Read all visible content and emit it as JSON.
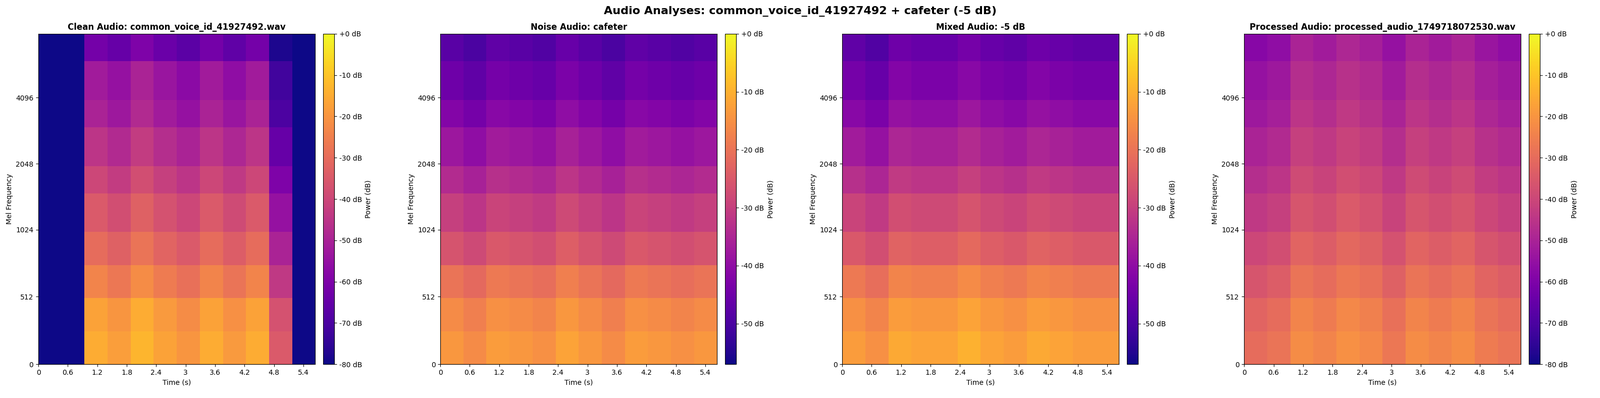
{
  "title": "Audio Analyses: common_voice_id_41927492 + cafeter (-5 dB)",
  "chart_data": [
    {
      "type": "heatmap",
      "title": "Clean Audio: common_voice_id_41927492.wav",
      "x_label": "Time (s)",
      "y_label": "Mel Frequency",
      "color": "plasma",
      "x_edges": [
        0,
        0.47,
        0.94,
        1.41,
        1.88,
        2.35,
        2.82,
        3.29,
        3.76,
        4.23,
        4.7,
        5.17,
        5.64
      ],
      "y_edges": [
        0,
        250,
        500,
        750,
        1000,
        1500,
        2000,
        3000,
        4000,
        6000,
        8000
      ],
      "cells": [
        [
          -80,
          -80,
          -15,
          -18,
          -13,
          -17,
          -20,
          -15,
          -19,
          -15,
          -35,
          -80
        ],
        [
          -80,
          -80,
          -17,
          -20,
          -15,
          -19,
          -22,
          -17,
          -21,
          -17,
          -37,
          -80
        ],
        [
          -80,
          -80,
          -24,
          -27,
          -22,
          -26,
          -29,
          -24,
          -28,
          -24,
          -44,
          -80
        ],
        [
          -80,
          -80,
          -30,
          -33,
          -28,
          -32,
          -35,
          -30,
          -34,
          -30,
          -50,
          -80
        ],
        [
          -80,
          -80,
          -35,
          -38,
          -33,
          -37,
          -40,
          -35,
          -39,
          -35,
          -55,
          -80
        ],
        [
          -80,
          -80,
          -40,
          -43,
          -38,
          -42,
          -45,
          -40,
          -44,
          -40,
          -60,
          -80
        ],
        [
          -80,
          -80,
          -45,
          -48,
          -43,
          -47,
          -50,
          -45,
          -49,
          -45,
          -65,
          -80
        ],
        [
          -80,
          -80,
          -50,
          -53,
          -48,
          -52,
          -55,
          -50,
          -54,
          -50,
          -70,
          -80
        ],
        [
          -80,
          -80,
          -52,
          -55,
          -50,
          -54,
          -57,
          -52,
          -56,
          -52,
          -72,
          -80
        ],
        [
          -80,
          -80,
          -62,
          -65,
          -60,
          -64,
          -67,
          -62,
          -66,
          -62,
          -78,
          -80
        ]
      ],
      "xlim": [
        0,
        5.64
      ],
      "xticks": [
        0,
        0.6,
        1.2,
        1.8,
        2.4,
        3,
        3.6,
        4.2,
        4.8,
        5.4
      ],
      "ylim": [
        0,
        8000
      ],
      "yticks": [
        0,
        512,
        1024,
        2048,
        4096
      ],
      "colorbar": {
        "label": "Power (dB)",
        "range": [
          -80,
          0
        ],
        "ticks": [
          {
            "value": 0,
            "label": "+0 dB"
          },
          {
            "value": -10,
            "label": "-10 dB"
          },
          {
            "value": -20,
            "label": "-20 dB"
          },
          {
            "value": -30,
            "label": "-30 dB"
          },
          {
            "value": -40,
            "label": "-40 dB"
          },
          {
            "value": -50,
            "label": "-50 dB"
          },
          {
            "value": -60,
            "label": "-60 dB"
          },
          {
            "value": -70,
            "label": "-70 dB"
          },
          {
            "value": -80,
            "label": "-80 dB"
          }
        ]
      }
    },
    {
      "type": "heatmap",
      "title": "Noise Audio: cafeter",
      "x_label": "Time (s)",
      "y_label": "Mel Frequency",
      "color": "plasma",
      "x_edges": [
        0,
        0.47,
        0.94,
        1.41,
        1.88,
        2.35,
        2.82,
        3.29,
        3.76,
        4.23,
        4.7,
        5.17,
        5.64
      ],
      "y_edges": [
        0,
        250,
        500,
        750,
        1000,
        1500,
        2000,
        3000,
        4000,
        6000,
        8000
      ],
      "cells": [
        [
          -14,
          -16,
          -13,
          -14,
          -15,
          -12,
          -14,
          -16,
          -13,
          -14,
          -15,
          -14
        ],
        [
          -16,
          -18,
          -15,
          -16,
          -17,
          -14,
          -16,
          -18,
          -15,
          -16,
          -17,
          -16
        ],
        [
          -20,
          -22,
          -19,
          -20,
          -21,
          -18,
          -20,
          -22,
          -19,
          -20,
          -21,
          -20
        ],
        [
          -26,
          -28,
          -25,
          -26,
          -27,
          -24,
          -26,
          -28,
          -25,
          -26,
          -27,
          -26
        ],
        [
          -30,
          -32,
          -29,
          -30,
          -31,
          -28,
          -30,
          -32,
          -29,
          -30,
          -31,
          -30
        ],
        [
          -34,
          -36,
          -33,
          -34,
          -35,
          -32,
          -34,
          -36,
          -33,
          -34,
          -35,
          -34
        ],
        [
          -38,
          -40,
          -37,
          -38,
          -39,
          -36,
          -38,
          -40,
          -37,
          -38,
          -39,
          -38
        ],
        [
          -42,
          -44,
          -41,
          -42,
          -43,
          -40,
          -42,
          -44,
          -41,
          -42,
          -43,
          -42
        ],
        [
          -45,
          -47,
          -44,
          -45,
          -46,
          -43,
          -45,
          -47,
          -44,
          -45,
          -46,
          -45
        ],
        [
          -48,
          -50,
          -47,
          -48,
          -49,
          -46,
          -48,
          -50,
          -47,
          -48,
          -49,
          -48
        ]
      ],
      "xlim": [
        0,
        5.64
      ],
      "xticks": [
        0,
        0.6,
        1.2,
        1.8,
        2.4,
        3,
        3.6,
        4.2,
        4.8,
        5.4
      ],
      "ylim": [
        0,
        8000
      ],
      "yticks": [
        0,
        512,
        1024,
        2048,
        4096
      ],
      "colorbar": {
        "label": "Power (dB)",
        "range": [
          -57,
          0
        ],
        "ticks": [
          {
            "value": 0,
            "label": "+0 dB"
          },
          {
            "value": -10,
            "label": "-10 dB"
          },
          {
            "value": -20,
            "label": "-20 dB"
          },
          {
            "value": -30,
            "label": "-30 dB"
          },
          {
            "value": -40,
            "label": "-40 dB"
          },
          {
            "value": -50,
            "label": "-50 dB"
          }
        ]
      }
    },
    {
      "type": "heatmap",
      "title": "Mixed Audio: -5 dB",
      "x_label": "Time (s)",
      "y_label": "Mel Frequency",
      "color": "plasma",
      "x_edges": [
        0,
        0.47,
        0.94,
        1.41,
        1.88,
        2.35,
        2.82,
        3.29,
        3.76,
        4.23,
        4.7,
        5.17,
        5.64
      ],
      "y_edges": [
        0,
        250,
        500,
        750,
        1000,
        1500,
        2000,
        3000,
        4000,
        6000,
        8000
      ],
      "cells": [
        [
          -13,
          -15,
          -11,
          -12,
          -12,
          -10,
          -12,
          -13,
          -11,
          -12,
          -13,
          -13
        ],
        [
          -15,
          -17,
          -13,
          -14,
          -14,
          -12,
          -14,
          -15,
          -13,
          -14,
          -15,
          -15
        ],
        [
          -19,
          -21,
          -17,
          -18,
          -18,
          -16,
          -18,
          -19,
          -17,
          -18,
          -19,
          -19
        ],
        [
          -25,
          -27,
          -23,
          -24,
          -24,
          -22,
          -24,
          -25,
          -23,
          -24,
          -25,
          -25
        ],
        [
          -29,
          -31,
          -27,
          -28,
          -28,
          -26,
          -28,
          -29,
          -27,
          -28,
          -29,
          -29
        ],
        [
          -33,
          -35,
          -31,
          -32,
          -32,
          -30,
          -32,
          -33,
          -31,
          -32,
          -33,
          -33
        ],
        [
          -37,
          -39,
          -35,
          -36,
          -36,
          -34,
          -36,
          -37,
          -35,
          -36,
          -37,
          -37
        ],
        [
          -41,
          -43,
          -39,
          -40,
          -40,
          -38,
          -40,
          -41,
          -39,
          -40,
          -41,
          -41
        ],
        [
          -44,
          -46,
          -42,
          -43,
          -43,
          -41,
          -43,
          -44,
          -42,
          -43,
          -44,
          -44
        ],
        [
          -47,
          -49,
          -45,
          -46,
          -46,
          -44,
          -46,
          -47,
          -45,
          -46,
          -47,
          -47
        ]
      ],
      "xlim": [
        0,
        5.64
      ],
      "xticks": [
        0,
        0.6,
        1.2,
        1.8,
        2.4,
        3,
        3.6,
        4.2,
        4.8,
        5.4
      ],
      "ylim": [
        0,
        8000
      ],
      "yticks": [
        0,
        512,
        1024,
        2048,
        4096
      ],
      "colorbar": {
        "label": "Power (dB)",
        "range": [
          -57,
          0
        ],
        "ticks": [
          {
            "value": 0,
            "label": "+0 dB"
          },
          {
            "value": -10,
            "label": "-10 dB"
          },
          {
            "value": -20,
            "label": "-20 dB"
          },
          {
            "value": -30,
            "label": "-30 dB"
          },
          {
            "value": -40,
            "label": "-40 dB"
          },
          {
            "value": -50,
            "label": "-50 dB"
          }
        ]
      }
    },
    {
      "type": "heatmap",
      "title": "Processed Audio: processed_audio_1749718072530.wav",
      "x_label": "Time (s)",
      "y_label": "Mel Frequency",
      "color": "plasma",
      "x_edges": [
        0,
        0.47,
        0.94,
        1.41,
        1.88,
        2.35,
        2.82,
        3.29,
        3.76,
        4.23,
        4.7,
        5.17,
        5.64
      ],
      "y_edges": [
        0,
        250,
        500,
        750,
        1000,
        1500,
        2000,
        3000,
        4000,
        6000,
        8000
      ],
      "cells": [
        [
          -30,
          -28,
          -22,
          -24,
          -21,
          -23,
          -27,
          -22,
          -24,
          -22,
          -26,
          -28
        ],
        [
          -32,
          -30,
          -24,
          -26,
          -23,
          -25,
          -29,
          -24,
          -26,
          -24,
          -28,
          -30
        ],
        [
          -36,
          -34,
          -28,
          -30,
          -27,
          -29,
          -33,
          -28,
          -30,
          -28,
          -32,
          -34
        ],
        [
          -40,
          -38,
          -32,
          -34,
          -31,
          -33,
          -37,
          -32,
          -34,
          -32,
          -36,
          -38
        ],
        [
          -44,
          -42,
          -36,
          -38,
          -35,
          -37,
          -41,
          -36,
          -38,
          -36,
          -40,
          -42
        ],
        [
          -47,
          -45,
          -39,
          -41,
          -38,
          -40,
          -44,
          -39,
          -41,
          -39,
          -43,
          -45
        ],
        [
          -50,
          -48,
          -42,
          -44,
          -41,
          -43,
          -47,
          -42,
          -44,
          -42,
          -46,
          -48
        ],
        [
          -53,
          -51,
          -45,
          -47,
          -44,
          -46,
          -50,
          -45,
          -47,
          -45,
          -49,
          -51
        ],
        [
          -55,
          -53,
          -47,
          -49,
          -46,
          -48,
          -52,
          -47,
          -49,
          -47,
          -51,
          -53
        ],
        [
          -58,
          -56,
          -50,
          -52,
          -49,
          -51,
          -55,
          -50,
          -52,
          -50,
          -54,
          -56
        ]
      ],
      "xlim": [
        0,
        5.64
      ],
      "xticks": [
        0,
        0.6,
        1.2,
        1.8,
        2.4,
        3,
        3.6,
        4.2,
        4.8,
        5.4
      ],
      "ylim": [
        0,
        8000
      ],
      "yticks": [
        0,
        512,
        1024,
        2048,
        4096
      ],
      "colorbar": {
        "label": "Power (dB)",
        "range": [
          -80,
          0
        ],
        "ticks": [
          {
            "value": 0,
            "label": "+0 dB"
          },
          {
            "value": -10,
            "label": "-10 dB"
          },
          {
            "value": -20,
            "label": "-20 dB"
          },
          {
            "value": -30,
            "label": "-30 dB"
          },
          {
            "value": -40,
            "label": "-40 dB"
          },
          {
            "value": -50,
            "label": "-50 dB"
          },
          {
            "value": -60,
            "label": "-60 dB"
          },
          {
            "value": -70,
            "label": "-70 dB"
          },
          {
            "value": -80,
            "label": "-80 dB"
          }
        ]
      }
    }
  ]
}
